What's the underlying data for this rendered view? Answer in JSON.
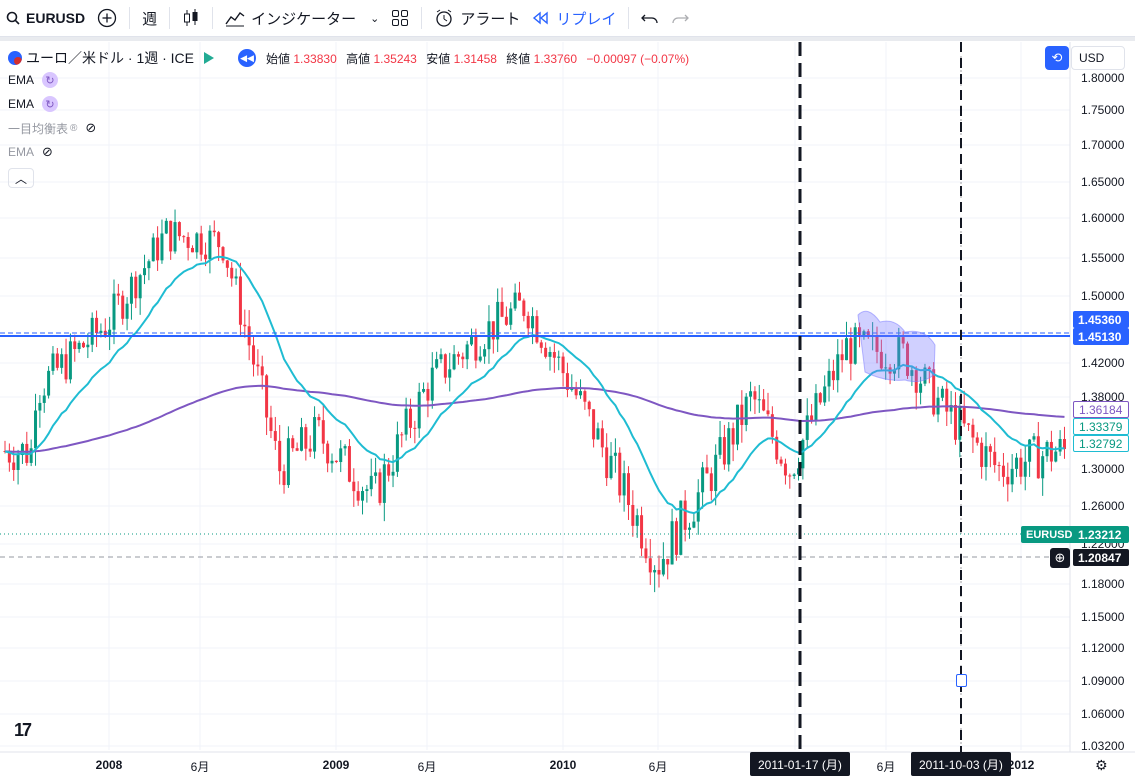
{
  "toolbar": {
    "symbol": "EURUSD",
    "interval": "週",
    "indicators_label": "インジケーター",
    "alert_label": "アラート",
    "replay_label": "リプレイ"
  },
  "legend": {
    "title": "ユーロ／米ドル · 1週 · ICE",
    "open_label": "始値",
    "open_value": "1.33830",
    "high_label": "高値",
    "high_value": "1.35243",
    "low_label": "安値",
    "low_value": "1.31458",
    "close_label": "終値",
    "close_value": "1.33760",
    "change_value": "−0.00097 (−0.07%)",
    "indicators": [
      {
        "label": "EMA",
        "visible": true
      },
      {
        "label": "EMA",
        "visible": true
      },
      {
        "label": "一目均衡表",
        "visible": false
      },
      {
        "label": "EMA",
        "visible": false
      }
    ]
  },
  "scale": {
    "currency": "USD",
    "ticks": [
      "1.80000",
      "1.75000",
      "1.70000",
      "1.65000",
      "1.60000",
      "1.55000",
      "1.50000",
      "1.42000",
      "1.38000",
      "1.30000",
      "1.26000",
      "1.22000",
      "1.18000",
      "1.15000",
      "1.12000",
      "1.09000",
      "1.06000",
      "1.03200"
    ]
  },
  "price_labels": {
    "line_a": "1.45360",
    "line_b": "1.45130",
    "ema_long": "1.36184",
    "ema_short": "1.33379",
    "last_teal": "1.32792",
    "symbol_tag": "EURUSD",
    "symbol_price": "1.23212",
    "crosshair_price": "1.20847"
  },
  "time_axis": {
    "labels": [
      "2008",
      "6月",
      "2009",
      "6月",
      "2010",
      "6月",
      "6月",
      "2012"
    ],
    "marker_1": "2011-01-17 (月)",
    "marker_2": "2011-10-03 (月)"
  },
  "colors": {
    "up": "#089981",
    "down": "#f23645",
    "ema_short": "#1fbcd2",
    "ema_long": "#7e57c2",
    "hline": "#2962ff"
  },
  "chart_data": {
    "type": "candlestick",
    "symbol": "EURUSD",
    "interval": "1W",
    "ylim": [
      1.03,
      1.8
    ],
    "series_shape": [
      [
        "2007-09",
        1.385
      ],
      [
        "2008-01",
        1.47
      ],
      [
        "2008-04",
        1.58
      ],
      [
        "2008-07",
        1.57
      ],
      [
        "2008-10",
        1.3
      ],
      [
        "2008-12",
        1.34
      ],
      [
        "2009-03",
        1.27
      ],
      [
        "2009-06",
        1.4
      ],
      [
        "2009-09",
        1.46
      ],
      [
        "2009-11",
        1.49
      ],
      [
        "2010-02",
        1.37
      ],
      [
        "2010-06",
        1.2
      ],
      [
        "2010-09",
        1.3
      ],
      [
        "2010-11",
        1.38
      ],
      [
        "2011-01",
        1.3
      ],
      [
        "2011-04",
        1.44
      ],
      [
        "2011-07",
        1.43
      ],
      [
        "2011-09",
        1.37
      ],
      [
        "2011-12",
        1.3
      ],
      [
        "2012-03",
        1.32
      ]
    ]
  }
}
